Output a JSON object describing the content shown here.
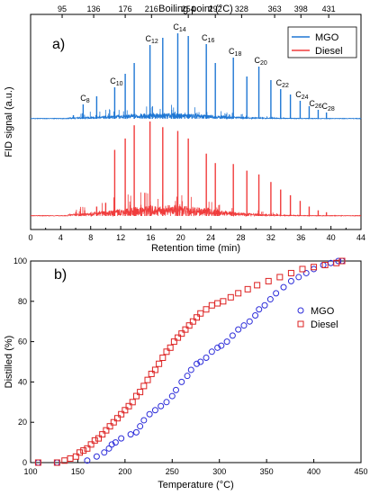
{
  "chart_data": [
    {
      "panel_label": "a)",
      "type": "line",
      "title": "",
      "xlabel": "Retention time (min)",
      "ylabel": "FID signal (a.u.)",
      "x_ticks": [
        0,
        2,
        4,
        6,
        8,
        10,
        12,
        14,
        16,
        18,
        20,
        22,
        24,
        26,
        28,
        30,
        32,
        34,
        36,
        38,
        40,
        42,
        44
      ],
      "x_tick_labels": [
        "0",
        "4",
        "8",
        "12",
        "16",
        "20",
        "24",
        "28",
        "32",
        "36",
        "40",
        "44"
      ],
      "xlim": [
        0,
        44
      ],
      "top_axis": {
        "label": "Boiling point (°C)",
        "ticks": [
          {
            "x": 4.2,
            "label": "95"
          },
          {
            "x": 8.4,
            "label": "136"
          },
          {
            "x": 12.6,
            "label": "176"
          },
          {
            "x": 16.1,
            "label": "216"
          },
          {
            "x": 21.0,
            "label": "254"
          },
          {
            "x": 24.6,
            "label": "292"
          },
          {
            "x": 28.1,
            "label": "328"
          },
          {
            "x": 32.5,
            "label": "363"
          },
          {
            "x": 36.0,
            "label": "398"
          },
          {
            "x": 39.7,
            "label": "431"
          }
        ]
      },
      "legend": {
        "placement": "top-right",
        "entries": [
          "MGO",
          "Diesel"
        ]
      },
      "colors": {
        "MGO": "#1f77d4",
        "Diesel": "#f03c3c"
      },
      "peak_labels": [
        {
          "base": "C",
          "sub": "8",
          "x": 7.0
        },
        {
          "base": "C",
          "sub": "10",
          "x": 11.2
        },
        {
          "base": "C",
          "sub": "12",
          "x": 15.9
        },
        {
          "base": "C",
          "sub": "14",
          "x": 19.6
        },
        {
          "base": "C",
          "sub": "16",
          "x": 23.4
        },
        {
          "base": "C",
          "sub": "18",
          "x": 27.0
        },
        {
          "base": "C",
          "sub": "20",
          "x": 30.4
        },
        {
          "base": "C",
          "sub": "22",
          "x": 33.3
        },
        {
          "base": "C",
          "sub": "24",
          "x": 35.9
        },
        {
          "base": "C",
          "sub": "26",
          "x": 37.7
        },
        {
          "base": "C",
          "sub": "28",
          "x": 39.4
        }
      ],
      "series": [
        {
          "name": "MGO",
          "peaks": [
            [
              5.7,
              0.04
            ],
            [
              7.0,
              0.16
            ],
            [
              8.8,
              0.25
            ],
            [
              11.2,
              0.35
            ],
            [
              12.6,
              0.5
            ],
            [
              13.8,
              0.62
            ],
            [
              15.9,
              0.82
            ],
            [
              17.6,
              0.9
            ],
            [
              19.6,
              0.95
            ],
            [
              21.0,
              0.92
            ],
            [
              23.4,
              0.83
            ],
            [
              24.6,
              0.62
            ],
            [
              27.0,
              0.68
            ],
            [
              28.8,
              0.47
            ],
            [
              30.4,
              0.58
            ],
            [
              32.0,
              0.43
            ],
            [
              33.3,
              0.33
            ],
            [
              34.6,
              0.27
            ],
            [
              35.9,
              0.2
            ],
            [
              37.1,
              0.14
            ],
            [
              38.3,
              0.1
            ],
            [
              39.4,
              0.07
            ]
          ]
        },
        {
          "name": "Diesel",
          "peaks": [
            [
              7.2,
              0.06
            ],
            [
              8.8,
              0.1
            ],
            [
              10.0,
              0.14
            ],
            [
              11.2,
              0.7
            ],
            [
              12.6,
              0.82
            ],
            [
              13.8,
              0.96
            ],
            [
              15.9,
              1.0
            ],
            [
              17.6,
              0.94
            ],
            [
              19.6,
              0.9
            ],
            [
              21.0,
              0.82
            ],
            [
              23.4,
              0.66
            ],
            [
              24.6,
              0.56
            ],
            [
              27.0,
              0.55
            ],
            [
              28.8,
              0.48
            ],
            [
              30.4,
              0.44
            ],
            [
              32.0,
              0.36
            ],
            [
              33.3,
              0.28
            ],
            [
              34.6,
              0.22
            ],
            [
              35.9,
              0.16
            ],
            [
              37.1,
              0.1
            ],
            [
              38.3,
              0.06
            ],
            [
              39.4,
              0.04
            ]
          ]
        }
      ]
    },
    {
      "panel_label": "b)",
      "type": "scatter",
      "title": "",
      "xlabel": "Temperature (°C)",
      "ylabel": "Distilled (%)",
      "xlim": [
        100,
        450
      ],
      "ylim": [
        0,
        100
      ],
      "x_ticks": [
        100,
        150,
        200,
        250,
        300,
        350,
        400,
        450
      ],
      "y_ticks": [
        0,
        20,
        40,
        60,
        80,
        100
      ],
      "legend": {
        "placement": "center-right",
        "entries": [
          "MGO",
          "Diesel"
        ]
      },
      "colors": {
        "MGO": "#2b2bd9",
        "Diesel": "#dd2222"
      },
      "series": [
        {
          "name": "MGO",
          "marker": "circle",
          "x": [
            108,
            128,
            160,
            170,
            178,
            183,
            186,
            190,
            196,
            206,
            212,
            216,
            220,
            226,
            232,
            238,
            244,
            250,
            254,
            260,
            266,
            270,
            276,
            280,
            286,
            292,
            298,
            302,
            308,
            314,
            320,
            326,
            332,
            338,
            342,
            348,
            354,
            360,
            368,
            376,
            384,
            392,
            400,
            410,
            418,
            426,
            430
          ],
          "y": [
            0,
            0,
            1,
            3,
            5,
            7,
            9,
            10,
            12,
            14,
            15,
            18,
            21,
            24,
            26,
            28,
            30,
            33,
            36,
            40,
            43,
            46,
            49,
            50,
            52,
            55,
            57,
            58,
            60,
            63,
            66,
            68,
            70,
            73,
            76,
            78,
            81,
            84,
            87,
            90,
            92,
            94,
            96,
            98,
            99,
            100,
            100
          ]
        },
        {
          "name": "Diesel",
          "marker": "square",
          "x": [
            108,
            128,
            136,
            142,
            148,
            152,
            156,
            160,
            164,
            168,
            172,
            176,
            180,
            184,
            188,
            192,
            196,
            200,
            204,
            208,
            212,
            216,
            220,
            224,
            228,
            232,
            236,
            240,
            244,
            248,
            252,
            256,
            260,
            264,
            268,
            272,
            276,
            280,
            286,
            292,
            298,
            304,
            312,
            320,
            330,
            340,
            352,
            364,
            376,
            388,
            400,
            412,
            424,
            430
          ],
          "y": [
            0,
            0,
            1,
            2,
            3,
            5,
            6,
            7,
            9,
            11,
            12,
            14,
            16,
            18,
            20,
            22,
            24,
            26,
            28,
            30,
            33,
            35,
            38,
            41,
            44,
            46,
            49,
            52,
            55,
            57,
            60,
            62,
            64,
            66,
            68,
            70,
            72,
            74,
            76,
            78,
            79,
            80,
            82,
            84,
            86,
            88,
            90,
            92,
            94,
            96,
            97,
            98,
            99,
            100
          ]
        }
      ]
    }
  ]
}
